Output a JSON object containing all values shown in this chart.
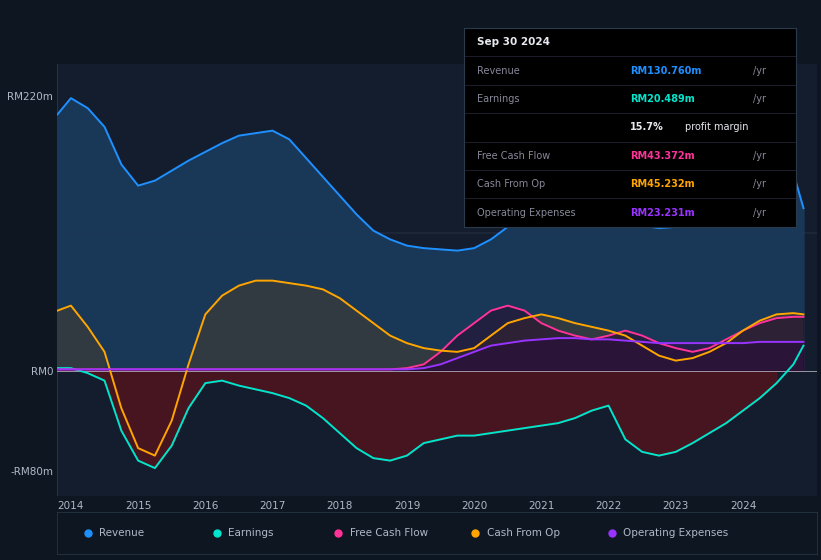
{
  "bg_color": "#0e1621",
  "plot_bg": "#131d2e",
  "revenue_color": "#1e90ff",
  "earnings_color": "#00e5cc",
  "fcf_color": "#ff3399",
  "cashop_color": "#ffa500",
  "opex_color": "#9933ff",
  "revenue_fill": "#1a3a5c",
  "earnings_fill_neg": "#4a1520",
  "cashop_fill": "#3a3a3a",
  "opex_fill": "#2a1a4a",
  "years_data": [
    2013.8,
    2014.0,
    2014.25,
    2014.5,
    2014.75,
    2015.0,
    2015.25,
    2015.5,
    2015.75,
    2016.0,
    2016.25,
    2016.5,
    2016.75,
    2017.0,
    2017.25,
    2017.5,
    2017.75,
    2018.0,
    2018.25,
    2018.5,
    2018.75,
    2019.0,
    2019.25,
    2019.5,
    2019.75,
    2020.0,
    2020.25,
    2020.5,
    2020.75,
    2021.0,
    2021.25,
    2021.5,
    2021.75,
    2022.0,
    2022.25,
    2022.5,
    2022.75,
    2023.0,
    2023.25,
    2023.5,
    2023.75,
    2024.0,
    2024.25,
    2024.5,
    2024.75,
    2024.9
  ],
  "revenue": [
    205,
    218,
    210,
    195,
    165,
    148,
    152,
    160,
    168,
    175,
    182,
    188,
    190,
    192,
    185,
    170,
    155,
    140,
    125,
    112,
    105,
    100,
    98,
    97,
    96,
    98,
    105,
    115,
    122,
    128,
    130,
    128,
    126,
    124,
    120,
    116,
    114,
    115,
    118,
    125,
    135,
    148,
    158,
    162,
    158,
    130
  ],
  "earnings": [
    2,
    2,
    -2,
    -8,
    -48,
    -72,
    -78,
    -60,
    -30,
    -10,
    -8,
    -12,
    -15,
    -18,
    -22,
    -28,
    -38,
    -50,
    -62,
    -70,
    -72,
    -68,
    -58,
    -55,
    -52,
    -52,
    -50,
    -48,
    -46,
    -44,
    -42,
    -38,
    -32,
    -28,
    -55,
    -65,
    -68,
    -65,
    -58,
    -50,
    -42,
    -32,
    -22,
    -10,
    5,
    20
  ],
  "fcf": [
    1,
    1,
    1,
    1,
    1,
    1,
    1,
    1,
    1,
    1,
    1,
    1,
    1,
    1,
    1,
    1,
    1,
    1,
    1,
    1,
    1,
    2,
    5,
    15,
    28,
    38,
    48,
    52,
    48,
    38,
    32,
    28,
    25,
    28,
    32,
    28,
    22,
    18,
    15,
    18,
    25,
    32,
    38,
    42,
    43,
    43
  ],
  "cash_op": [
    48,
    52,
    35,
    15,
    -30,
    -62,
    -68,
    -40,
    5,
    45,
    60,
    68,
    72,
    72,
    70,
    68,
    65,
    58,
    48,
    38,
    28,
    22,
    18,
    16,
    15,
    18,
    28,
    38,
    42,
    45,
    42,
    38,
    35,
    32,
    28,
    20,
    12,
    8,
    10,
    15,
    22,
    32,
    40,
    45,
    46,
    45
  ],
  "op_exp": [
    1,
    1,
    1,
    1,
    1,
    1,
    1,
    1,
    1,
    1,
    1,
    1,
    1,
    1,
    1,
    1,
    1,
    1,
    1,
    1,
    1,
    1,
    2,
    5,
    10,
    15,
    20,
    22,
    24,
    25,
    26,
    26,
    25,
    25,
    24,
    23,
    22,
    22,
    22,
    22,
    22,
    22,
    23,
    23,
    23,
    23
  ],
  "xlim": [
    2013.8,
    2025.1
  ],
  "ylim": [
    -100,
    245
  ],
  "yticks": [
    220,
    0,
    -80
  ],
  "ytick_labels": [
    "RM220m",
    "RM0",
    "-RM80m"
  ],
  "xticks": [
    2014,
    2015,
    2016,
    2017,
    2018,
    2019,
    2020,
    2021,
    2022,
    2023,
    2024
  ],
  "xtick_labels": [
    "2014",
    "2015",
    "2016",
    "2017",
    "2018",
    "2019",
    "2020",
    "2021",
    "2022",
    "2023",
    "2024"
  ],
  "legend": [
    {
      "label": "Revenue",
      "color": "#1e90ff"
    },
    {
      "label": "Earnings",
      "color": "#00e5cc"
    },
    {
      "label": "Free Cash Flow",
      "color": "#ff3399"
    },
    {
      "label": "Cash From Op",
      "color": "#ffa500"
    },
    {
      "label": "Operating Expenses",
      "color": "#9933ff"
    }
  ],
  "info": {
    "date": "Sep 30 2024",
    "rows": [
      {
        "label": "Revenue",
        "value": "RM130.760m",
        "unit": "/yr",
        "color": "#1e90ff"
      },
      {
        "label": "Earnings",
        "value": "RM20.489m",
        "unit": "/yr",
        "color": "#00e5cc"
      },
      {
        "label": "",
        "value": "15.7%",
        "unit": " profit margin",
        "color": "#ffffff"
      },
      {
        "label": "Free Cash Flow",
        "value": "RM43.372m",
        "unit": "/yr",
        "color": "#ff3399"
      },
      {
        "label": "Cash From Op",
        "value": "RM45.232m",
        "unit": "/yr",
        "color": "#ffa500"
      },
      {
        "label": "Operating Expenses",
        "value": "RM23.231m",
        "unit": "/yr",
        "color": "#9933ff"
      }
    ]
  }
}
